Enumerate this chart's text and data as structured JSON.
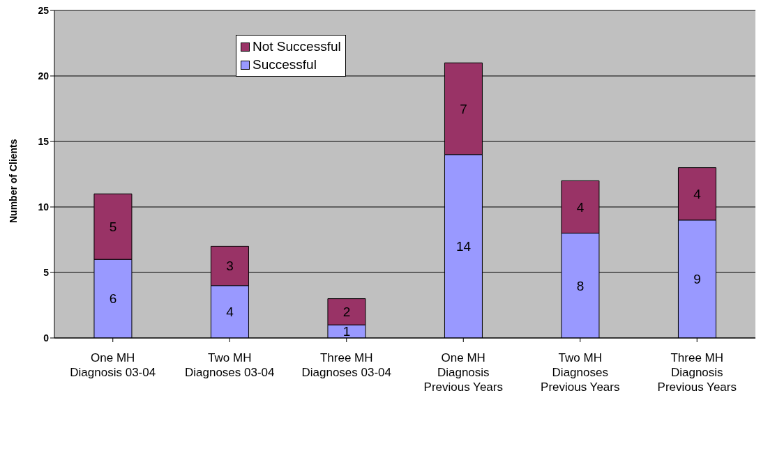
{
  "chart_data": {
    "type": "bar",
    "stacked": true,
    "ylabel": "Number of Clients",
    "categories": [
      "One MH Diagnosis 03-04",
      "Two MH Diagnoses 03-04",
      "Three MH Diagnoses 03-04",
      "One MH Diagnosis Previous Years",
      "Two MH Diagnoses Previous Years",
      "Three MH Diagnosis Previous Years"
    ],
    "series": [
      {
        "name": "Successful",
        "color": "#9999ff",
        "values": [
          6,
          4,
          1,
          14,
          8,
          9
        ]
      },
      {
        "name": "Not Successful",
        "color": "#993366",
        "values": [
          5,
          3,
          2,
          7,
          4,
          4
        ]
      }
    ],
    "ylim": [
      0,
      25
    ],
    "yticks": [
      0,
      5,
      10,
      15,
      20,
      25
    ],
    "grid": "y",
    "legend": "top left",
    "data_labels": true
  }
}
